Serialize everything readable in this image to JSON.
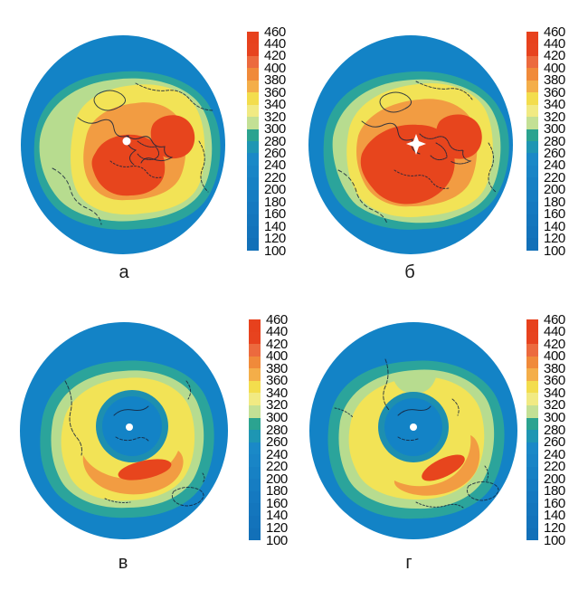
{
  "figure": {
    "background": "#ffffff",
    "panels": [
      {
        "label": "а",
        "hemisphere": "north",
        "pole_marker": "dot"
      },
      {
        "label": "б",
        "hemisphere": "north",
        "pole_marker": "star"
      },
      {
        "label": "в",
        "hemisphere": "south",
        "pole_marker": "dot"
      },
      {
        "label": "г",
        "hemisphere": "south",
        "pole_marker": "dot"
      }
    ],
    "colorbar": {
      "ticks": [
        "460",
        "440",
        "420",
        "400",
        "380",
        "360",
        "340",
        "320",
        "300",
        "280",
        "260",
        "240",
        "220",
        "200",
        "180",
        "160",
        "140",
        "120",
        "100"
      ],
      "bands": [
        {
          "range": [
            440,
            460
          ],
          "color": "#e7411d"
        },
        {
          "range": [
            420,
            440
          ],
          "color": "#e7431f"
        },
        {
          "range": [
            400,
            420
          ],
          "color": "#ec6a3e"
        },
        {
          "range": [
            380,
            400
          ],
          "color": "#f08a3a"
        },
        {
          "range": [
            360,
            380
          ],
          "color": "#f4ae49"
        },
        {
          "range": [
            340,
            360
          ],
          "color": "#f3dd4d"
        },
        {
          "range": [
            320,
            340
          ],
          "color": "#f1ea83"
        },
        {
          "range": [
            300,
            320
          ],
          "color": "#c3e095"
        },
        {
          "range": [
            280,
            300
          ],
          "color": "#2ba390"
        },
        {
          "range": [
            260,
            280
          ],
          "color": "#1e96b3"
        },
        {
          "range": [
            240,
            260
          ],
          "color": "#1a89c7"
        },
        {
          "range": [
            220,
            240
          ],
          "color": "#1985c6"
        },
        {
          "range": [
            200,
            220
          ],
          "color": "#1781c4"
        },
        {
          "range": [
            180,
            200
          ],
          "color": "#167dc2"
        },
        {
          "range": [
            160,
            180
          ],
          "color": "#1579c0"
        },
        {
          "range": [
            140,
            160
          ],
          "color": "#1476bd"
        },
        {
          "range": [
            120,
            140
          ],
          "color": "#1373bb"
        },
        {
          "range": [
            100,
            120
          ],
          "color": "#1270b8"
        }
      ]
    },
    "map_colors": {
      "ocean": "#1383c6",
      "teal": "#2ba49b",
      "green": "#b7dc8f",
      "yellow": "#f2e356",
      "orange": "#f29c42",
      "red": "#e7451d",
      "hole_rim": "#1d8fb0",
      "coast": "#16243c",
      "pole_marker": "#ffffff"
    }
  }
}
